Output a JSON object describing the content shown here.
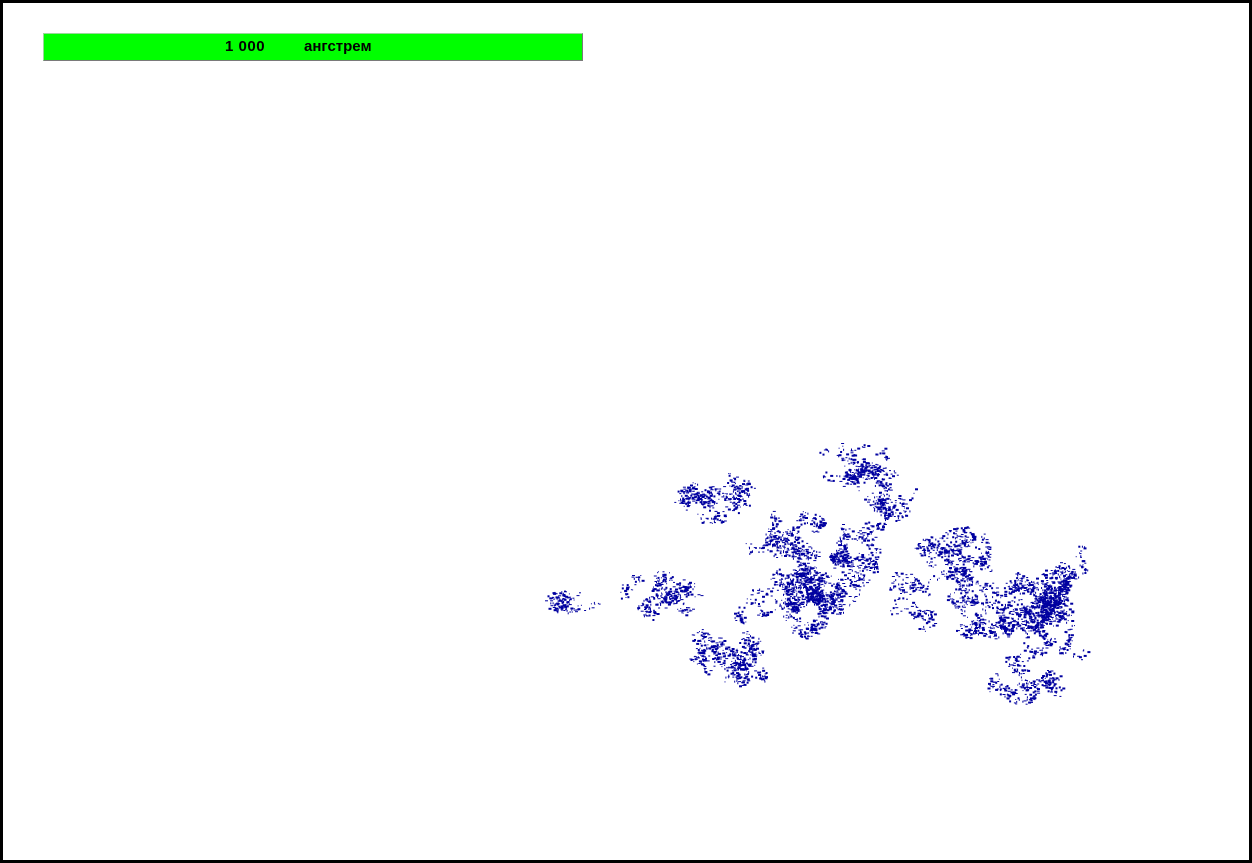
{
  "scale_bar": {
    "value": "1 000",
    "unit": "ангстрем",
    "background_color": "#00ff00"
  },
  "cluster": {
    "color": "#0000a0"
  },
  "frame_color": "#000000"
}
